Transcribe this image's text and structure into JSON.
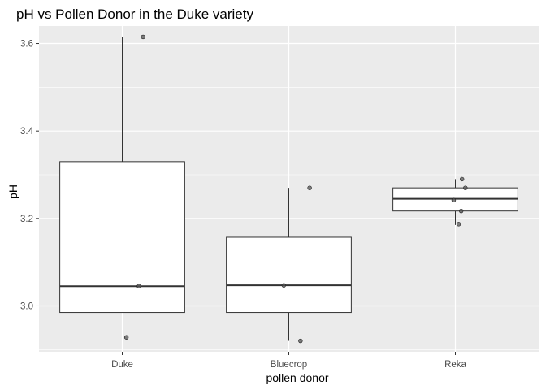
{
  "chart_data": {
    "type": "boxplot",
    "title": "pH vs Pollen Donor in the Duke variety",
    "xlabel": "pollen donor",
    "ylabel": "pH",
    "ylim": [
      2.895,
      3.64
    ],
    "yticks": [
      3.0,
      3.2,
      3.4,
      3.6
    ],
    "ytick_labels": [
      "3.0",
      "3.2",
      "3.4",
      "3.6"
    ],
    "categories": [
      "Duke",
      "Bluecrop",
      "Reka"
    ],
    "boxes": [
      {
        "category": "Duke",
        "whisker_low": 2.985,
        "q1": 2.985,
        "median": 3.045,
        "q3": 3.33,
        "whisker_high": 3.615
      },
      {
        "category": "Bluecrop",
        "whisker_low": 2.92,
        "q1": 2.985,
        "median": 3.047,
        "q3": 3.157,
        "whisker_high": 3.27
      },
      {
        "category": "Reka",
        "whisker_low": 3.185,
        "q1": 3.217,
        "median": 3.245,
        "q3": 3.27,
        "whisker_high": 3.29
      }
    ],
    "points": [
      {
        "category": "Duke",
        "jitter": 0.25,
        "y": 3.615
      },
      {
        "category": "Duke",
        "jitter": 0.2,
        "y": 3.045
      },
      {
        "category": "Duke",
        "jitter": 0.05,
        "y": 2.928
      },
      {
        "category": "Bluecrop",
        "jitter": -0.06,
        "y": 3.047
      },
      {
        "category": "Bluecrop",
        "jitter": 0.25,
        "y": 3.27
      },
      {
        "category": "Bluecrop",
        "jitter": 0.14,
        "y": 2.92
      },
      {
        "category": "Reka",
        "jitter": -0.02,
        "y": 3.242
      },
      {
        "category": "Reka",
        "jitter": 0.08,
        "y": 3.29
      },
      {
        "category": "Reka",
        "jitter": 0.12,
        "y": 3.27
      },
      {
        "category": "Reka",
        "jitter": 0.07,
        "y": 3.217
      },
      {
        "category": "Reka",
        "jitter": 0.04,
        "y": 3.187
      }
    ],
    "grid": true,
    "legend": "none",
    "colors": {
      "panel_background": "#ebebeb",
      "grid": "#ffffff",
      "box_fill": "#ffffff",
      "box_outline": "#333333",
      "point": "#555555"
    }
  }
}
